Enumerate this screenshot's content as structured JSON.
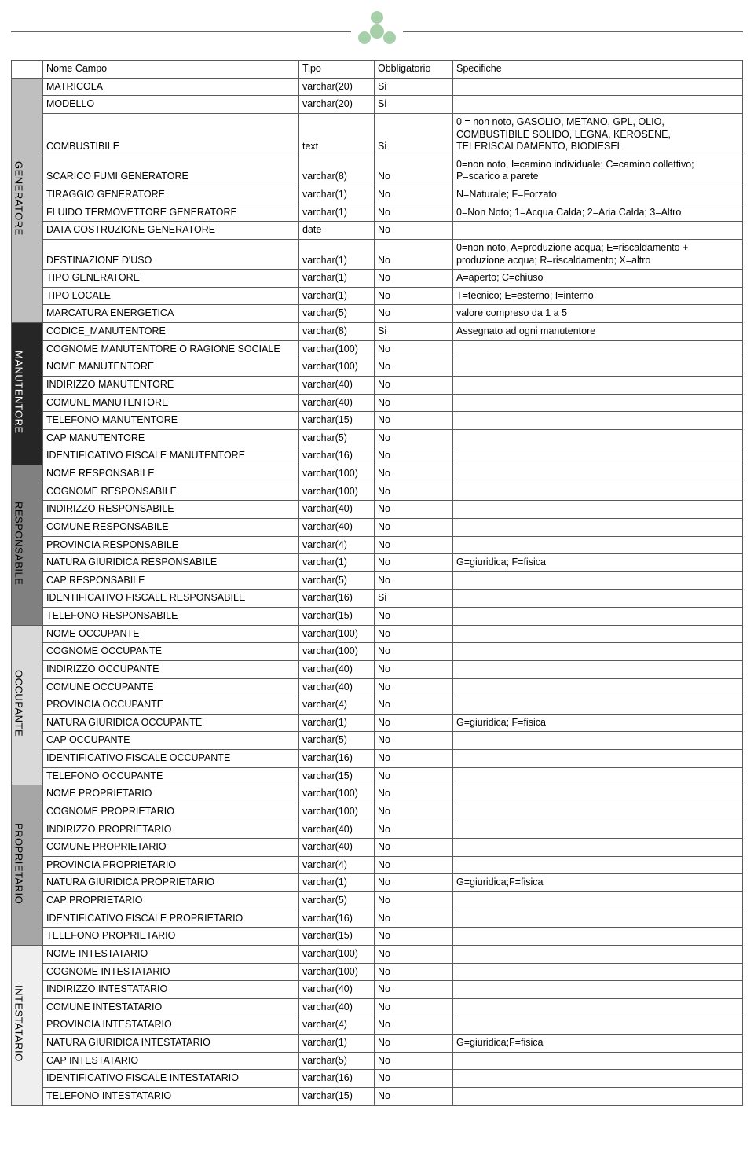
{
  "logo": {
    "fill": "#a7d0aa"
  },
  "header": {
    "name": "Nome Campo",
    "type": "Tipo",
    "required": "Obbligatorio",
    "spec": "Specifiche"
  },
  "groups": [
    {
      "id": "generatore",
      "label": "GENERATORE",
      "bg": "#bfbfbf",
      "fg": "#000000",
      "rows": [
        {
          "name": "MATRICOLA",
          "type": "varchar(20)",
          "req": "Si",
          "spec": ""
        },
        {
          "name": "MODELLO",
          "type": "varchar(20)",
          "req": "Si",
          "spec": ""
        },
        {
          "name": "COMBUSTIBILE",
          "type": "text",
          "req": "Si",
          "spec": "0 = non noto, GASOLIO, METANO, GPL, OLIO, COMBUSTIBILE SOLIDO, LEGNA, KEROSENE, TELERISCALDAMENTO, BIODIESEL"
        },
        {
          "name": "SCARICO FUMI GENERATORE",
          "type": "varchar(8)",
          "req": "No",
          "spec": "0=non noto, I=camino individuale; C=camino collettivo; P=scarico a parete"
        },
        {
          "name": "TIRAGGIO GENERATORE",
          "type": "varchar(1)",
          "req": "No",
          "spec": "N=Naturale; F=Forzato"
        },
        {
          "name": "FLUIDO TERMOVETTORE GENERATORE",
          "type": "varchar(1)",
          "req": "No",
          "spec": "0=Non Noto; 1=Acqua Calda; 2=Aria Calda; 3=Altro"
        },
        {
          "name": "DATA COSTRUZIONE GENERATORE",
          "type": "date",
          "req": "No",
          "spec": ""
        },
        {
          "name": "DESTINAZIONE D'USO",
          "type": "varchar(1)",
          "req": "No",
          "spec": "0=non noto, A=produzione acqua; E=riscaldamento + produzione acqua; R=riscaldamento; X=altro"
        },
        {
          "name": "TIPO GENERATORE",
          "type": "varchar(1)",
          "req": "No",
          "spec": "A=aperto; C=chiuso"
        },
        {
          "name": "TIPO LOCALE",
          "type": "varchar(1)",
          "req": "No",
          "spec": "T=tecnico; E=esterno; I=interno"
        },
        {
          "name": "MARCATURA ENERGETICA",
          "type": "varchar(5)",
          "req": "No",
          "spec": "valore compreso da 1 a 5"
        }
      ]
    },
    {
      "id": "manutentore",
      "label": "MANUTENTORE",
      "bg": "#262626",
      "fg": "#ffffff",
      "rows": [
        {
          "name": "CODICE_MANUTENTORE",
          "type": "varchar(8)",
          "req": "Si",
          "spec": "Assegnato ad ogni manutentore"
        },
        {
          "name": "COGNOME MANUTENTORE O RAGIONE SOCIALE",
          "type": "varchar(100)",
          "req": "No",
          "spec": ""
        },
        {
          "name": "NOME MANUTENTORE",
          "type": "varchar(100)",
          "req": "No",
          "spec": ""
        },
        {
          "name": "INDIRIZZO MANUTENTORE",
          "type": "varchar(40)",
          "req": "No",
          "spec": ""
        },
        {
          "name": "COMUNE MANUTENTORE",
          "type": "varchar(40)",
          "req": "No",
          "spec": ""
        },
        {
          "name": "TELEFONO MANUTENTORE",
          "type": "varchar(15)",
          "req": "No",
          "spec": ""
        },
        {
          "name": "CAP MANUTENTORE",
          "type": "varchar(5)",
          "req": "No",
          "spec": ""
        },
        {
          "name": "IDENTIFICATIVO FISCALE MANUTENTORE",
          "type": "varchar(16)",
          "req": "No",
          "spec": ""
        }
      ]
    },
    {
      "id": "responsabile",
      "label": "RESPONSABILE",
      "bg": "#808080",
      "fg": "#000000",
      "rows": [
        {
          "name": "NOME RESPONSABILE",
          "type": "varchar(100)",
          "req": "No",
          "spec": ""
        },
        {
          "name": "COGNOME RESPONSABILE",
          "type": "varchar(100)",
          "req": "No",
          "spec": ""
        },
        {
          "name": "INDIRIZZO RESPONSABILE",
          "type": "varchar(40)",
          "req": "No",
          "spec": ""
        },
        {
          "name": "COMUNE RESPONSABILE",
          "type": "varchar(40)",
          "req": "No",
          "spec": ""
        },
        {
          "name": "PROVINCIA RESPONSABILE",
          "type": "varchar(4)",
          "req": "No",
          "spec": ""
        },
        {
          "name": "NATURA GIURIDICA RESPONSABILE",
          "type": "varchar(1)",
          "req": "No",
          "spec": "G=giuridica; F=fisica"
        },
        {
          "name": "CAP RESPONSABILE",
          "type": "varchar(5)",
          "req": "No",
          "spec": ""
        },
        {
          "name": "IDENTIFICATIVO FISCALE RESPONSABILE",
          "type": "varchar(16)",
          "req": "Si",
          "spec": ""
        },
        {
          "name": "TELEFONO RESPONSABILE",
          "type": "varchar(15)",
          "req": "No",
          "spec": ""
        }
      ]
    },
    {
      "id": "occupante",
      "label": "OCCUPANTE",
      "bg": "#d9d9d9",
      "fg": "#000000",
      "rows": [
        {
          "name": "NOME OCCUPANTE",
          "type": "varchar(100)",
          "req": "No",
          "spec": ""
        },
        {
          "name": "COGNOME OCCUPANTE",
          "type": "varchar(100)",
          "req": "No",
          "spec": ""
        },
        {
          "name": "INDIRIZZO OCCUPANTE",
          "type": "varchar(40)",
          "req": "No",
          "spec": ""
        },
        {
          "name": "COMUNE OCCUPANTE",
          "type": "varchar(40)",
          "req": "No",
          "spec": ""
        },
        {
          "name": "PROVINCIA OCCUPANTE",
          "type": "varchar(4)",
          "req": "No",
          "spec": ""
        },
        {
          "name": "NATURA GIURIDICA OCCUPANTE",
          "type": "varchar(1)",
          "req": "No",
          "spec": "G=giuridica; F=fisica"
        },
        {
          "name": "CAP OCCUPANTE",
          "type": "varchar(5)",
          "req": "No",
          "spec": ""
        },
        {
          "name": "IDENTIFICATIVO FISCALE OCCUPANTE",
          "type": "varchar(16)",
          "req": "No",
          "spec": ""
        },
        {
          "name": "TELEFONO OCCUPANTE",
          "type": "varchar(15)",
          "req": "No",
          "spec": ""
        }
      ]
    },
    {
      "id": "proprietario",
      "label": "PROPRIETARIO",
      "bg": "#a6a6a6",
      "fg": "#000000",
      "rows": [
        {
          "name": "NOME PROPRIETARIO",
          "type": "varchar(100)",
          "req": "No",
          "spec": ""
        },
        {
          "name": "COGNOME PROPRIETARIO",
          "type": "varchar(100)",
          "req": "No",
          "spec": ""
        },
        {
          "name": "INDIRIZZO PROPRIETARIO",
          "type": "varchar(40)",
          "req": "No",
          "spec": ""
        },
        {
          "name": "COMUNE PROPRIETARIO",
          "type": "varchar(40)",
          "req": "No",
          "spec": ""
        },
        {
          "name": "PROVINCIA PROPRIETARIO",
          "type": "varchar(4)",
          "req": "No",
          "spec": ""
        },
        {
          "name": "NATURA GIURIDICA PROPRIETARIO",
          "type": "varchar(1)",
          "req": "No",
          "spec": "G=giuridica;F=fisica"
        },
        {
          "name": "CAP PROPRIETARIO",
          "type": "varchar(5)",
          "req": "No",
          "spec": ""
        },
        {
          "name": "IDENTIFICATIVO FISCALE PROPRIETARIO",
          "type": "varchar(16)",
          "req": "No",
          "spec": ""
        },
        {
          "name": "TELEFONO PROPRIETARIO",
          "type": "varchar(15)",
          "req": "No",
          "spec": ""
        }
      ]
    },
    {
      "id": "intestatario",
      "label": "INTESTATARIO",
      "bg": "#efefef",
      "fg": "#000000",
      "rows": [
        {
          "name": "NOME INTESTATARIO",
          "type": "varchar(100)",
          "req": "No",
          "spec": ""
        },
        {
          "name": "COGNOME INTESTATARIO",
          "type": "varchar(100)",
          "req": "No",
          "spec": ""
        },
        {
          "name": "INDIRIZZO INTESTATARIO",
          "type": "varchar(40)",
          "req": "No",
          "spec": ""
        },
        {
          "name": "COMUNE INTESTATARIO",
          "type": "varchar(40)",
          "req": "No",
          "spec": ""
        },
        {
          "name": "PROVINCIA INTESTATARIO",
          "type": "varchar(4)",
          "req": "No",
          "spec": ""
        },
        {
          "name": "NATURA GIURIDICA INTESTATARIO",
          "type": "varchar(1)",
          "req": "No",
          "spec": "G=giuridica;F=fisica"
        },
        {
          "name": "CAP INTESTATARIO",
          "type": "varchar(5)",
          "req": "No",
          "spec": ""
        },
        {
          "name": "IDENTIFICATIVO FISCALE INTESTATARIO",
          "type": "varchar(16)",
          "req": "No",
          "spec": ""
        },
        {
          "name": "TELEFONO INTESTATARIO",
          "type": "varchar(15)",
          "req": "No",
          "spec": ""
        }
      ]
    }
  ]
}
